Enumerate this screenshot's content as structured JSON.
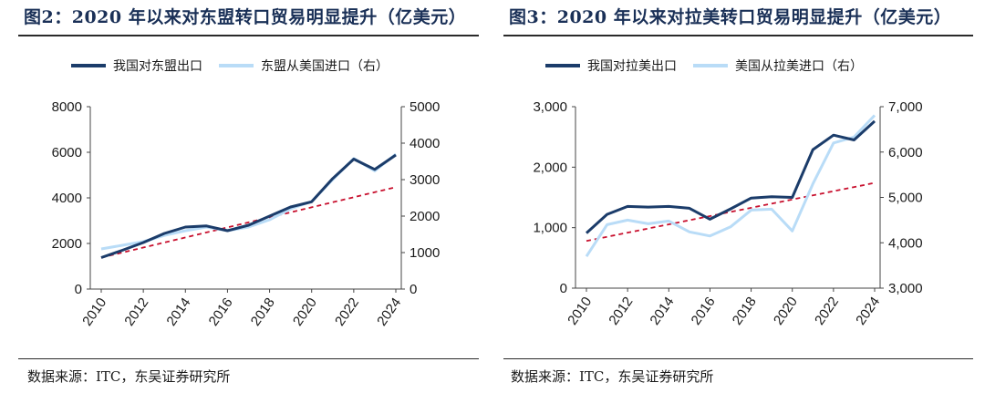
{
  "charts": [
    {
      "title": "图2：2020 年以来对东盟转口贸易明显提升（亿美元）",
      "source": "数据来源：ITC，东吴证券研究所",
      "legend": [
        {
          "label": "我国对东盟出口"
        },
        {
          "label": "东盟从美国进口（右）"
        }
      ]
    },
    {
      "title": "图3：2020 年以来对拉美转口贸易明显提升（亿美元）",
      "source": "数据来源：ITC，东吴证券研究所",
      "legend": [
        {
          "label": "我国对拉美出口"
        },
        {
          "label": "美国从拉美进口（右）"
        }
      ]
    }
  ],
  "chart_data": [
    {
      "type": "line",
      "x": [
        2010,
        2011,
        2012,
        2013,
        2014,
        2015,
        2016,
        2017,
        2018,
        2019,
        2020,
        2021,
        2022,
        2023,
        2024
      ],
      "x_tick_labels": [
        "2010",
        "2012",
        "2014",
        "2016",
        "2018",
        "2020",
        "2022",
        "2024"
      ],
      "ylim": [
        0,
        8000
      ],
      "y_ticks": [
        "0",
        "2000",
        "4000",
        "6000",
        "8000"
      ],
      "y2lim": [
        0,
        5000
      ],
      "y2_ticks": [
        "0",
        "1000",
        "2000",
        "3000",
        "4000",
        "5000"
      ],
      "grid": false,
      "legend_position": "top",
      "colors": {
        "series1": "#1b3c6a",
        "series2": "#b9dcf7",
        "trend": "#c8102e"
      },
      "series": [
        {
          "name": "我国对东盟出口",
          "axis": "left",
          "values": [
            1380,
            1700,
            2040,
            2440,
            2720,
            2770,
            2560,
            2800,
            3200,
            3600,
            3830,
            4850,
            5700,
            5250,
            5880
          ]
        },
        {
          "name": "东盟从美国进口（右）",
          "axis": "right",
          "values": [
            1100,
            1200,
            1300,
            1470,
            1600,
            1700,
            1600,
            1700,
            1900,
            2200,
            2400,
            3000,
            3580,
            3240,
            3700
          ]
        }
      ],
      "trend": {
        "axis": "left",
        "from": [
          2010,
          1380
        ],
        "to": [
          2024,
          4470
        ]
      }
    },
    {
      "type": "line",
      "x": [
        2010,
        2011,
        2012,
        2013,
        2014,
        2015,
        2016,
        2017,
        2018,
        2019,
        2020,
        2021,
        2022,
        2023,
        2024
      ],
      "x_tick_labels": [
        "2010",
        "2012",
        "2014",
        "2016",
        "2018",
        "2020",
        "2022",
        "2024"
      ],
      "ylim": [
        0,
        3000
      ],
      "y_ticks": [
        "0",
        "1,000",
        "2,000",
        "3,000"
      ],
      "y2lim": [
        3000,
        7000
      ],
      "y2_ticks": [
        "3,000",
        "4,000",
        "5,000",
        "6,000",
        "7,000"
      ],
      "grid": false,
      "legend_position": "top",
      "colors": {
        "series1": "#1b3c6a",
        "series2": "#b9dcf7",
        "trend": "#c8102e"
      },
      "series": [
        {
          "name": "我国对拉美出口",
          "axis": "left",
          "values": [
            910,
            1220,
            1350,
            1340,
            1350,
            1320,
            1140,
            1310,
            1490,
            1510,
            1500,
            2290,
            2530,
            2450,
            2760
          ]
        },
        {
          "name": "美国从拉美进口（右）",
          "axis": "right",
          "values": [
            3700,
            4400,
            4500,
            4420,
            4480,
            4240,
            4150,
            4350,
            4720,
            4740,
            4260,
            5300,
            6200,
            6330,
            6810
          ]
        }
      ],
      "trend": {
        "axis": "left",
        "from": [
          2010,
          780
        ],
        "to": [
          2024,
          1740
        ]
      }
    }
  ]
}
